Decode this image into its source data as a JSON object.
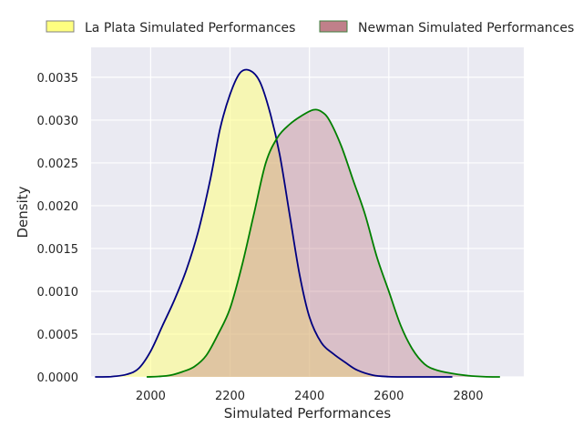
{
  "chart_data": {
    "type": "area",
    "subtype": "kde-density",
    "title": "",
    "xlabel": "Simulated Performances",
    "ylabel": "Density",
    "xlim": [
      1850,
      2940
    ],
    "ylim": [
      0,
      0.00385
    ],
    "x_ticks": [
      {
        "value": 2000,
        "label": "2000"
      },
      {
        "value": 2200,
        "label": "2200"
      },
      {
        "value": 2400,
        "label": "2400"
      },
      {
        "value": 2600,
        "label": "2600"
      },
      {
        "value": 2800,
        "label": "2800"
      }
    ],
    "y_ticks": [
      {
        "value": 0,
        "label": "0.0000"
      },
      {
        "value": 0.0005,
        "label": "0.0005"
      },
      {
        "value": 0.001,
        "label": "0.0010"
      },
      {
        "value": 0.0015,
        "label": "0.0015"
      },
      {
        "value": 0.002,
        "label": "0.0020"
      },
      {
        "value": 0.0025,
        "label": "0.0025"
      },
      {
        "value": 0.003,
        "label": "0.0030"
      },
      {
        "value": 0.0035,
        "label": "0.0035"
      }
    ],
    "grid": true,
    "legend_position": "top",
    "series": [
      {
        "name": "La Plata Simulated Performances",
        "fill_color": "#ffff80",
        "fill_opacity": 0.55,
        "line_color": "#000080",
        "legend_fill": "#ffff80",
        "legend_edge": "#808080",
        "x": [
          1860,
          1900,
          1940,
          1970,
          2000,
          2030,
          2060,
          2090,
          2120,
          2150,
          2175,
          2200,
          2225,
          2250,
          2275,
          2300,
          2325,
          2350,
          2375,
          2400,
          2430,
          2460,
          2490,
          2520,
          2560,
          2600,
          2640,
          2680,
          2720,
          2760
        ],
        "y": [
          0,
          3e-06,
          3e-05,
          0.0001,
          0.0003,
          0.0006,
          0.0009,
          0.00125,
          0.0017,
          0.0023,
          0.0029,
          0.0033,
          0.00355,
          0.00358,
          0.00345,
          0.0031,
          0.0026,
          0.0019,
          0.0012,
          0.0007,
          0.0004,
          0.00027,
          0.00017,
          8e-05,
          2e-05,
          3e-06,
          0,
          0,
          0,
          0
        ]
      },
      {
        "name": "Newman Simulated Performances",
        "fill_color": "#c0808a",
        "fill_opacity": 0.4,
        "line_color": "#008000",
        "legend_fill": "#c0808a",
        "legend_edge": "#408040",
        "x": [
          1990,
          2020,
          2050,
          2080,
          2110,
          2140,
          2170,
          2200,
          2230,
          2260,
          2290,
          2320,
          2350,
          2380,
          2410,
          2430,
          2450,
          2480,
          2510,
          2540,
          2570,
          2600,
          2630,
          2660,
          2690,
          2720,
          2760,
          2800,
          2840,
          2880
        ],
        "y": [
          0,
          5e-06,
          2e-05,
          6e-05,
          0.00012,
          0.00025,
          0.0005,
          0.0008,
          0.0013,
          0.0019,
          0.0025,
          0.0028,
          0.00295,
          0.00305,
          0.00312,
          0.0031,
          0.003,
          0.0027,
          0.0023,
          0.0019,
          0.0014,
          0.001,
          0.0006,
          0.00032,
          0.00015,
          8e-05,
          4e-05,
          1.5e-05,
          3e-06,
          0
        ]
      }
    ]
  }
}
